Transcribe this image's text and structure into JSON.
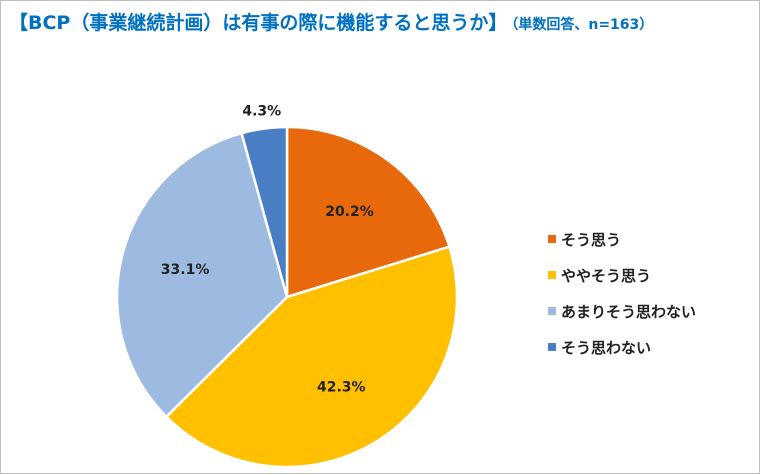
{
  "title": {
    "main": "【BCP（事業継続計画）は有事の際に機能すると思うか】",
    "sub": "（単数回答、n=163）"
  },
  "chart_data": {
    "type": "pie",
    "categories": [
      "そう思う",
      "ややそう思う",
      "あまりそう思わない",
      "そう思わない"
    ],
    "values": [
      20.2,
      42.3,
      33.1,
      4.3
    ],
    "value_labels": [
      "20.2%",
      "42.3%",
      "33.1%",
      "4.3%"
    ],
    "colors": [
      "#e8690b",
      "#ffc000",
      "#9dbbe0",
      "#4a7ec4"
    ],
    "start_angle_deg": 0,
    "direction": "clockwise",
    "legend_position": "right"
  }
}
